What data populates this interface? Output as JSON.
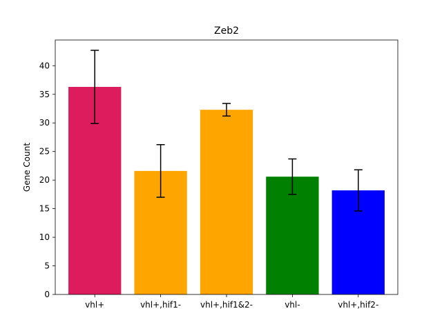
{
  "chart_data": {
    "type": "bar",
    "title": "Zeb2",
    "xlabel": "",
    "ylabel": "Gene Count",
    "ylim": [
      0,
      44.5
    ],
    "yticks": [
      0,
      5,
      10,
      15,
      20,
      25,
      30,
      35,
      40
    ],
    "categories": [
      "vhl+",
      "vhl+,hif1-",
      "vhl+,hif1&2-",
      "vhl-",
      "vhl+,hif2-"
    ],
    "values": [
      36.3,
      21.6,
      32.3,
      20.6,
      18.2
    ],
    "errors": [
      6.4,
      4.6,
      1.1,
      3.1,
      3.6
    ],
    "colors": [
      "#dc1c5c",
      "#ffa500",
      "#ffa500",
      "#008000",
      "#0000ff"
    ],
    "grid": false,
    "legend": "none"
  }
}
